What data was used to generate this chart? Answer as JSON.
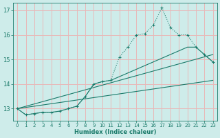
{
  "line1_x": [
    0,
    1,
    2,
    3,
    4,
    5,
    6,
    7,
    8,
    9,
    10,
    11,
    12,
    13,
    14,
    15,
    16,
    17,
    18,
    19,
    20,
    21,
    22,
    23
  ],
  "line1_y": [
    13.0,
    12.75,
    12.8,
    12.85,
    12.85,
    12.9,
    13.0,
    13.1,
    13.5,
    14.0,
    14.1,
    14.15,
    15.1,
    15.5,
    16.0,
    16.05,
    16.4,
    17.1,
    16.3,
    16.0,
    16.0,
    15.5,
    15.2,
    14.9
  ],
  "line2_x": [
    0,
    1,
    2,
    3,
    4,
    5,
    6,
    7,
    8,
    9,
    10,
    11,
    20,
    21,
    22,
    23
  ],
  "line2_y": [
    13.0,
    12.75,
    12.8,
    12.85,
    12.85,
    12.9,
    13.0,
    13.1,
    13.5,
    14.0,
    14.1,
    14.15,
    15.5,
    15.5,
    15.2,
    14.9
  ],
  "line3_x": [
    0,
    23
  ],
  "line3_y": [
    13.0,
    14.15
  ],
  "line4_x": [
    0,
    23
  ],
  "line4_y": [
    13.0,
    15.2
  ],
  "bg_color": "#ceecea",
  "grid_color": "#e8b8b8",
  "line_color": "#1a7a6a",
  "xlim": [
    -0.5,
    23.5
  ],
  "ylim": [
    12.5,
    17.3
  ],
  "yticks": [
    13,
    14,
    15,
    16,
    17
  ],
  "xticks": [
    0,
    1,
    2,
    3,
    4,
    5,
    6,
    7,
    8,
    9,
    10,
    11,
    12,
    13,
    14,
    15,
    16,
    17,
    18,
    19,
    20,
    21,
    22,
    23
  ],
  "xlabel": "Humidex (Indice chaleur)"
}
